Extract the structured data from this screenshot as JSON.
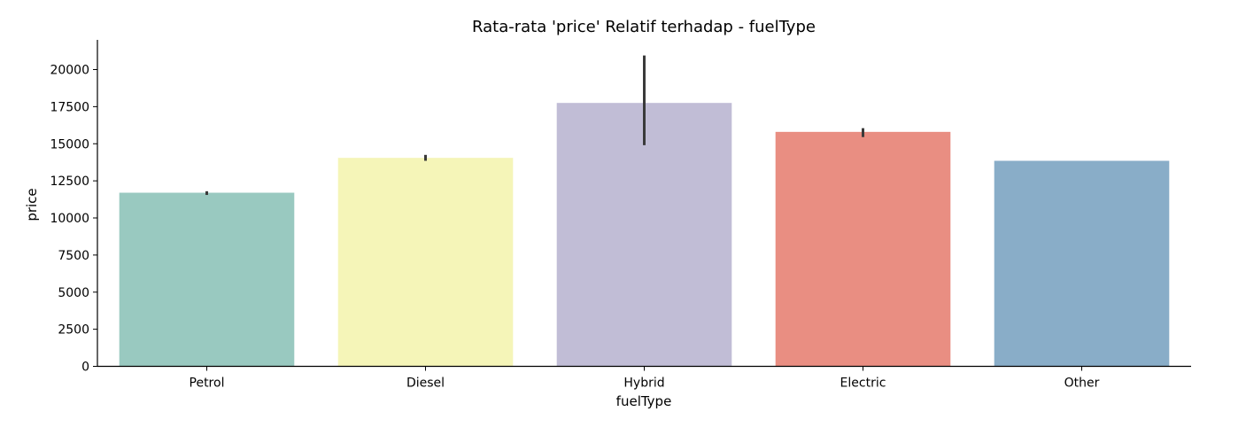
{
  "chart_data": {
    "type": "bar",
    "title": "Rata-rata 'price' Relatif terhadap - fuelType",
    "xlabel": "fuelType",
    "ylabel": "price",
    "categories": [
      "Petrol",
      "Diesel",
      "Hybrid",
      "Electric",
      "Other"
    ],
    "values": [
      11700,
      14050,
      17750,
      15800,
      13850
    ],
    "error_bars": [
      {
        "low": 11550,
        "high": 11800
      },
      {
        "low": 13850,
        "high": 14250
      },
      {
        "low": 14900,
        "high": 20950
      },
      {
        "low": 15450,
        "high": 16050
      },
      null
    ],
    "colors": [
      "#99c9c0",
      "#f5f5b8",
      "#c1bdd6",
      "#e98e82",
      "#89adc8"
    ],
    "error_color": "#3a3a3a",
    "ylim": [
      0,
      22000
    ],
    "yticks": [
      0,
      2500,
      5000,
      7500,
      10000,
      12500,
      15000,
      17500,
      20000
    ],
    "grid": false,
    "legend": "none"
  }
}
